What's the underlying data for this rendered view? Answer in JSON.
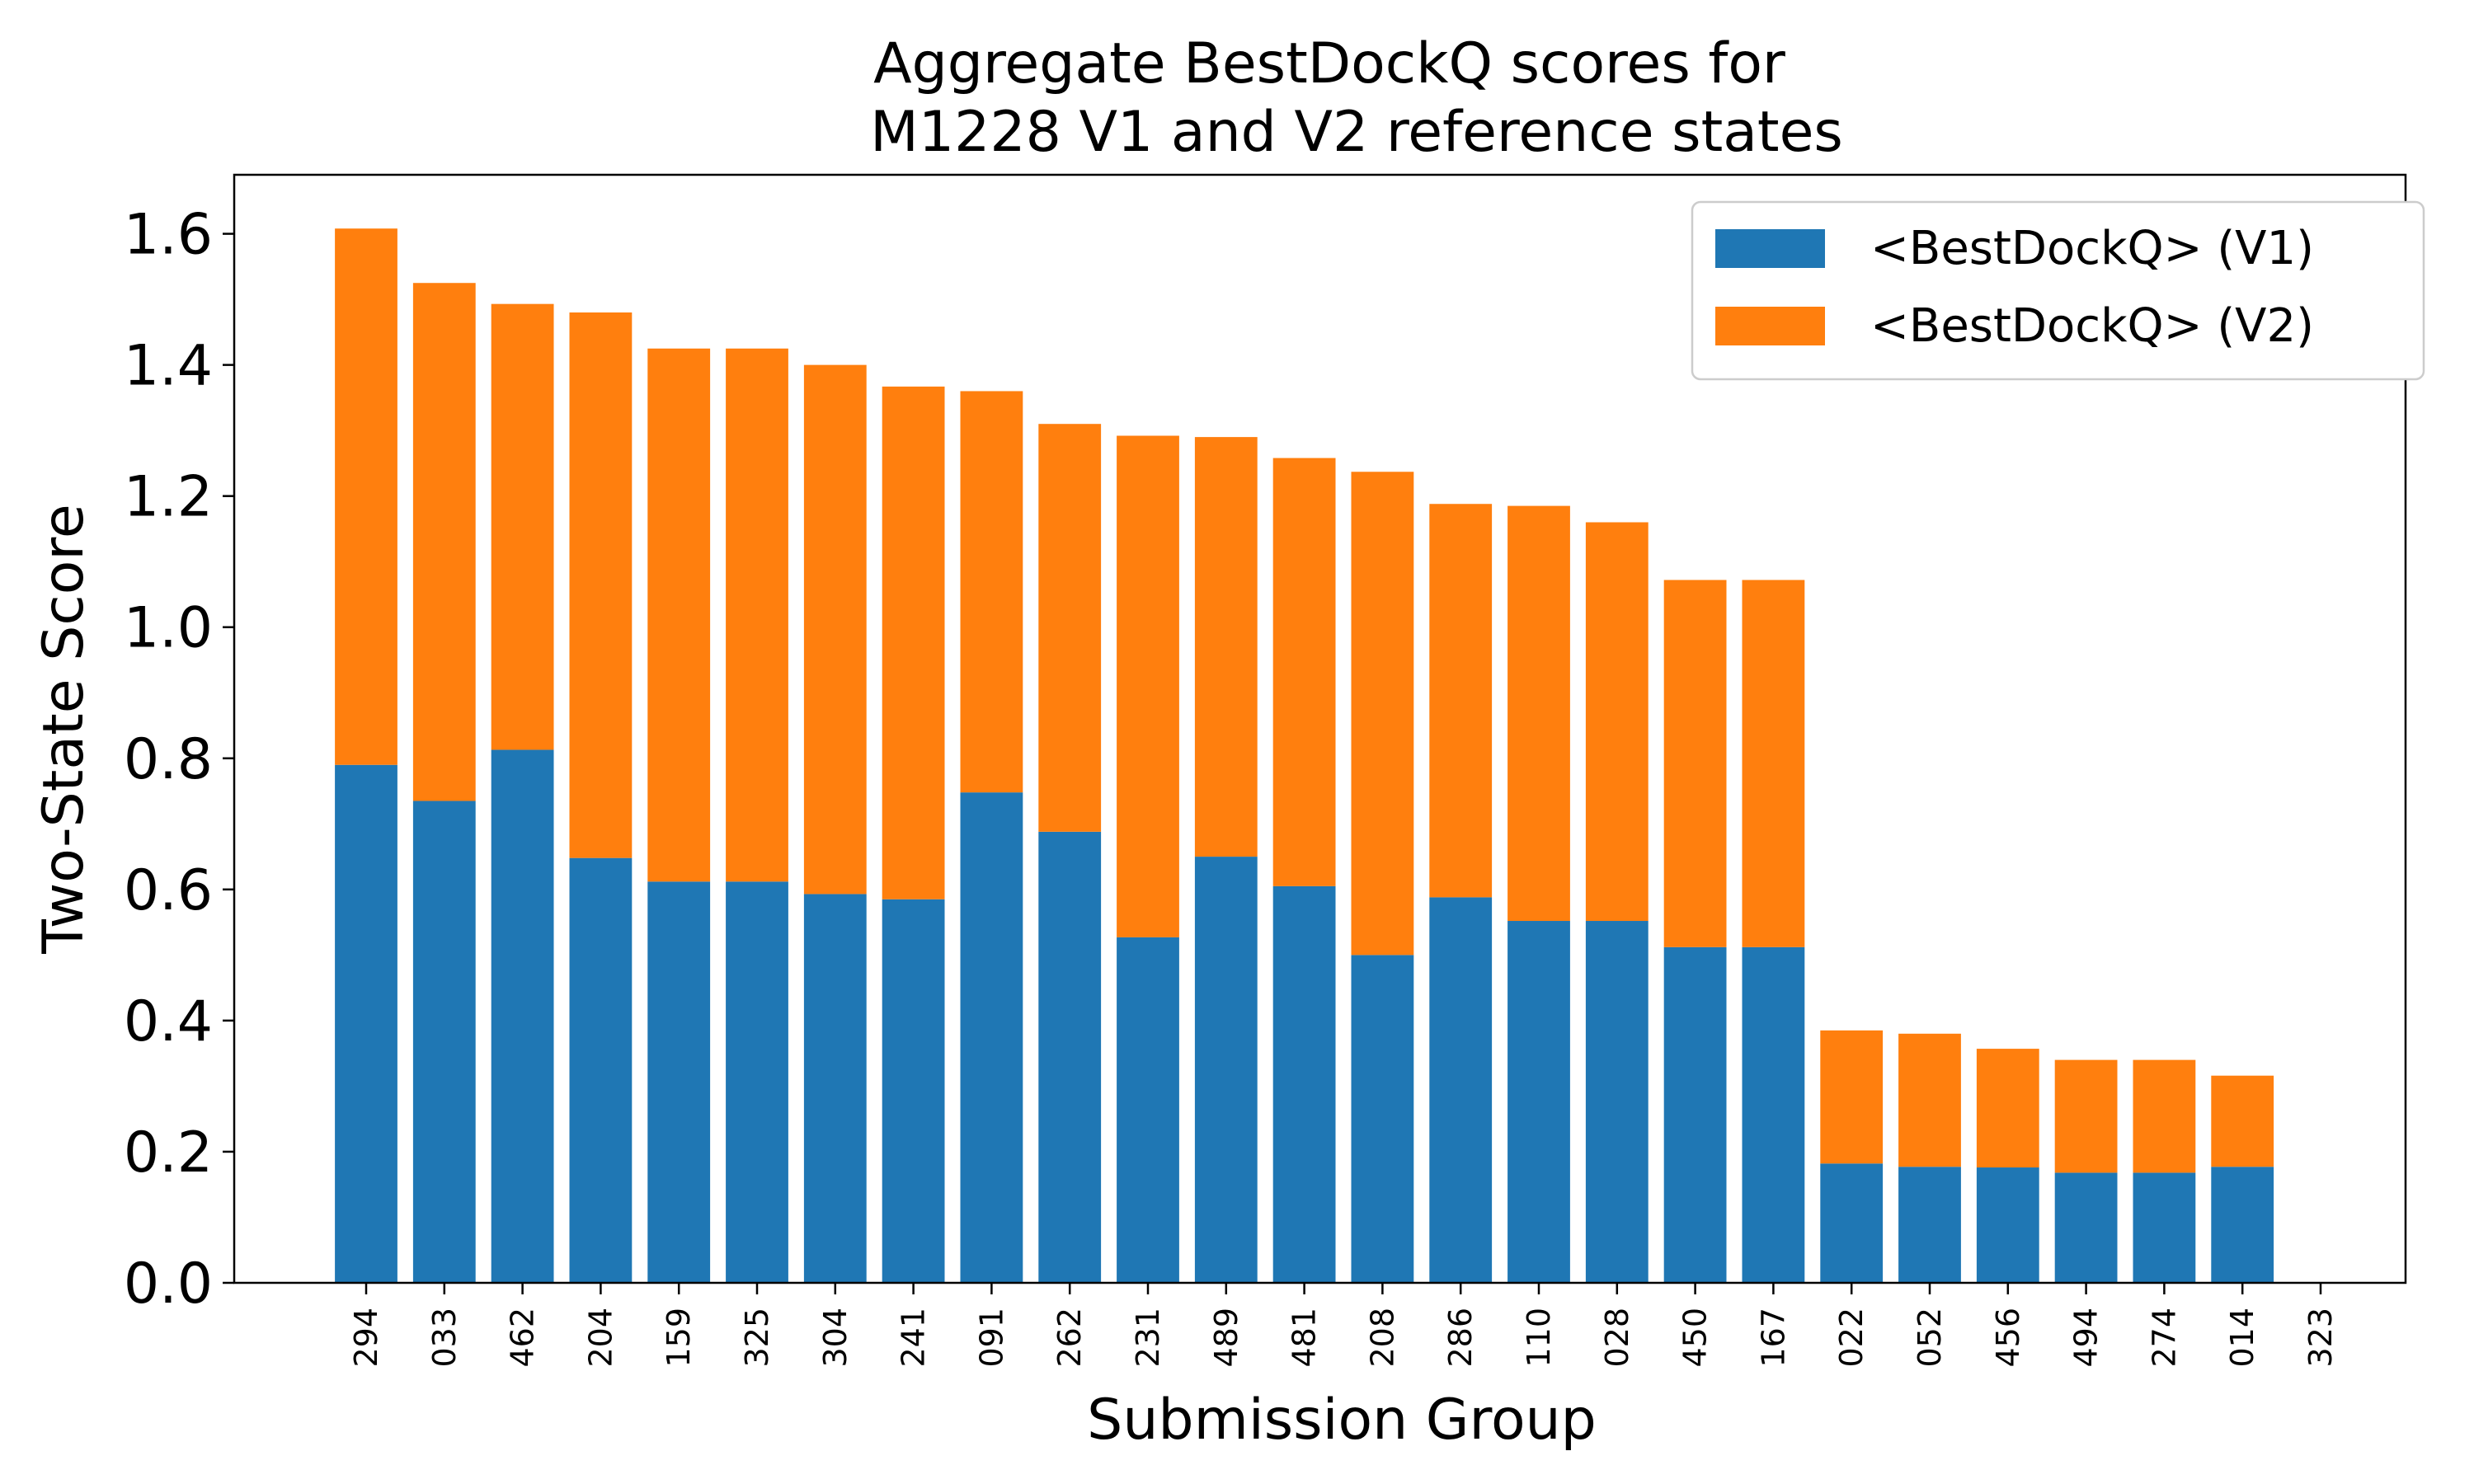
{
  "chart_data": {
    "type": "bar",
    "stacked": true,
    "title": [
      "Aggregate BestDockQ scores for",
      "M1228 V1 and V2 reference states"
    ],
    "xlabel": "Submission Group",
    "ylabel": "Two-State Score",
    "ylim": [
      0,
      1.69
    ],
    "yticks": [
      "0.0",
      "0.2",
      "0.4",
      "0.6",
      "0.8",
      "1.0",
      "1.2",
      "1.4",
      "1.6"
    ],
    "legend_position": "top-right",
    "grid": false,
    "categories": [
      "294",
      "033",
      "462",
      "204",
      "159",
      "325",
      "304",
      "241",
      "091",
      "262",
      "231",
      "489",
      "481",
      "208",
      "286",
      "110",
      "028",
      "450",
      "167",
      "022",
      "052",
      "456",
      "494",
      "274",
      "014",
      "323"
    ],
    "series": [
      {
        "name": "<BestDockQ> (V1)",
        "color": "#1f77b4",
        "values": [
          0.79,
          0.735,
          0.813,
          0.648,
          0.612,
          0.612,
          0.593,
          0.585,
          0.748,
          0.688,
          0.527,
          0.65,
          0.605,
          0.5,
          0.588,
          0.552,
          0.552,
          0.512,
          0.512,
          0.182,
          0.177,
          0.176,
          0.168,
          0.168,
          0.177,
          0.0
        ]
      },
      {
        "name": "<BestDockQ> (V2)",
        "color": "#ff7f0e",
        "values": [
          0.818,
          0.79,
          0.68,
          0.832,
          0.813,
          0.813,
          0.807,
          0.782,
          0.612,
          0.622,
          0.765,
          0.64,
          0.653,
          0.737,
          0.6,
          0.633,
          0.608,
          0.56,
          0.56,
          0.203,
          0.203,
          0.181,
          0.172,
          0.172,
          0.139,
          0.0
        ]
      }
    ]
  }
}
